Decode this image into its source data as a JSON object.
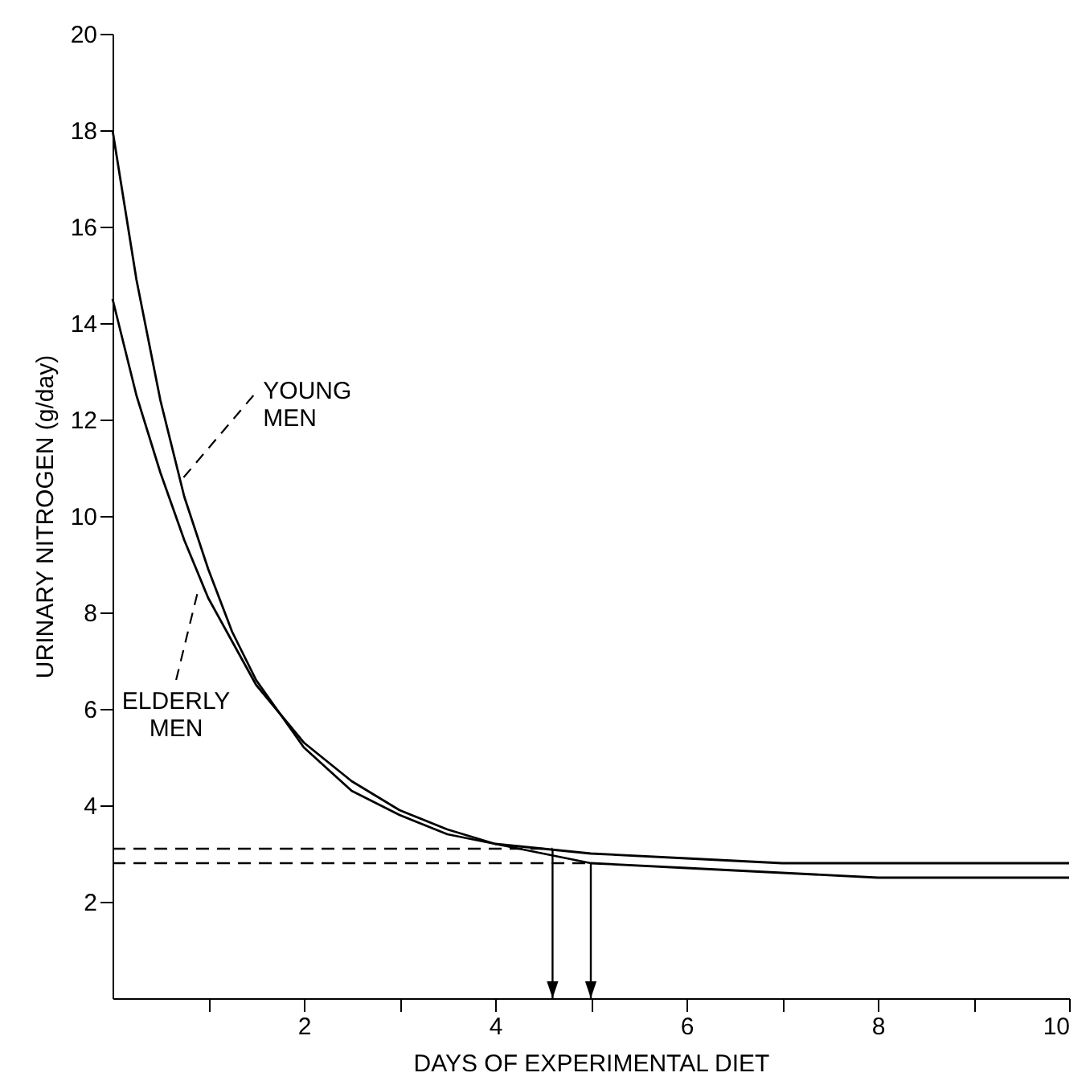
{
  "chart_data": {
    "type": "line",
    "xlabel": "DAYS OF EXPERIMENTAL DIET",
    "ylabel": "URINARY NITROGEN (g/day)",
    "xlim": [
      0,
      10
    ],
    "ylim": [
      0,
      20
    ],
    "xticks": [
      {
        "value": 1,
        "label": null
      },
      2,
      {
        "value": 3,
        "label": null
      },
      4,
      {
        "value": 5,
        "label": null
      },
      6,
      {
        "value": 7,
        "label": null
      },
      8,
      {
        "value": 9,
        "label": null
      },
      10
    ],
    "yticks": [
      2,
      4,
      6,
      8,
      10,
      12,
      14,
      16,
      18,
      20
    ],
    "grid": false,
    "legend": false,
    "marker": "none",
    "line_style": "solid",
    "series": [
      {
        "color": "#000000",
        "x": [
          0,
          0.25,
          0.5,
          0.75,
          1,
          1.25,
          1.5,
          2,
          2.5,
          3,
          3.5,
          4,
          5,
          6,
          7,
          8,
          10
        ],
        "values": [
          18.0,
          14.9,
          12.4,
          10.4,
          8.9,
          7.6,
          6.6,
          5.2,
          4.3,
          3.8,
          3.4,
          3.2,
          3.0,
          2.9,
          2.8,
          2.8,
          2.8
        ]
      },
      {
        "color": "#000000",
        "x": [
          0,
          0.25,
          0.5,
          0.75,
          1,
          1.25,
          1.5,
          2,
          2.5,
          3,
          3.5,
          4,
          5,
          6,
          7,
          8,
          10
        ],
        "values": [
          14.5,
          12.5,
          10.9,
          9.5,
          8.3,
          7.4,
          6.5,
          5.3,
          4.5,
          3.9,
          3.5,
          3.2,
          2.8,
          2.7,
          2.6,
          2.5,
          2.5
        ]
      }
    ],
    "ref_lines": [
      {
        "axis": "y",
        "value": 3.1,
        "line_style": "dashed",
        "color": "#000000"
      },
      {
        "axis": "y",
        "value": 2.8,
        "line_style": "dashed",
        "color": "#000000"
      },
      {
        "axis": "x",
        "value": 4.6,
        "line_style": "solid",
        "color": "#000000"
      },
      {
        "axis": "x",
        "value": 5.0,
        "line_style": "solid",
        "color": "#000000"
      }
    ],
    "annotations": [
      {
        "text": "YOUNG MEN",
        "x": 0.7,
        "y": 10.7
      },
      {
        "text": "ELDERLY MEN",
        "x": 0.9,
        "y": 8.5
      }
    ]
  }
}
